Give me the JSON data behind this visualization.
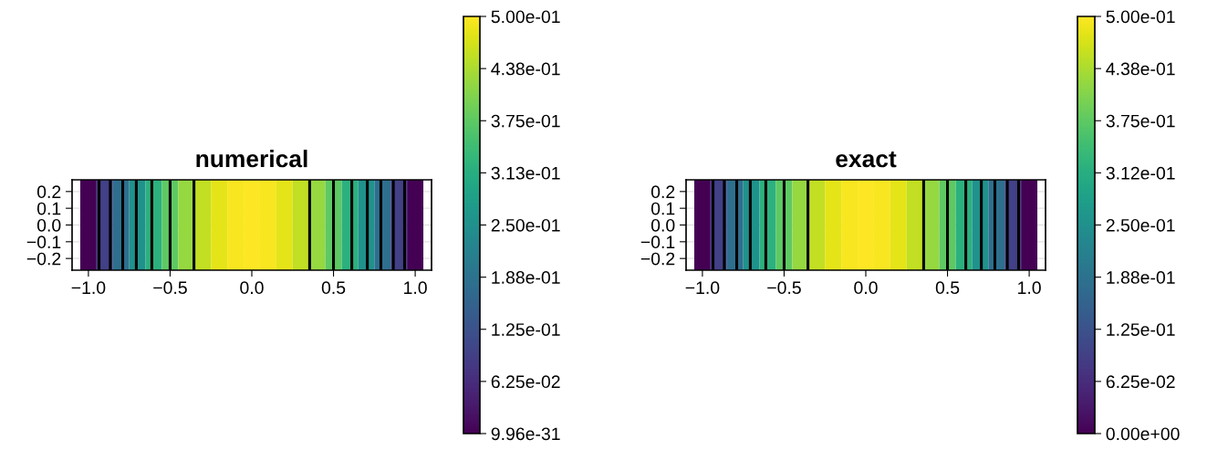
{
  "chart_data": [
    {
      "type": "heatmap",
      "title": "numerical",
      "x": [
        -1.0,
        -0.9,
        -0.8,
        -0.7,
        -0.6,
        -0.5,
        -0.4,
        -0.3,
        -0.2,
        -0.1,
        0.0,
        0.1,
        0.2,
        0.3,
        0.4,
        0.5,
        0.6,
        0.7,
        0.8,
        0.9,
        1.0
      ],
      "cells": [
        [
          9.96e-31,
          0.095,
          0.18,
          0.255,
          0.32,
          0.375,
          0.42,
          0.455,
          0.48,
          0.495,
          0.5,
          0.495,
          0.48,
          0.455,
          0.42,
          0.375,
          0.32,
          0.255,
          0.18,
          0.095,
          9.96e-31
        ]
      ],
      "xlim": [
        -1.1,
        1.1
      ],
      "ylim": [
        -0.27,
        0.27
      ],
      "xticks": [
        {
          "value": -1.0,
          "label": "−1.0"
        },
        {
          "value": -0.5,
          "label": "−0.5"
        },
        {
          "value": 0.0,
          "label": "0.0"
        },
        {
          "value": 0.5,
          "label": "0.5"
        },
        {
          "value": 1.0,
          "label": "1.0"
        }
      ],
      "yticks": [
        {
          "value": -0.2,
          "label": "−0.2"
        },
        {
          "value": -0.1,
          "label": "−0.1"
        },
        {
          "value": 0.0,
          "label": "0.0"
        },
        {
          "value": 0.1,
          "label": "0.1"
        },
        {
          "value": 0.2,
          "label": "0.2"
        }
      ],
      "clim": [
        9.96e-31,
        0.5
      ],
      "cticks": [
        {
          "value": 9.96e-31,
          "label": "9.96e-31"
        },
        {
          "value": 0.0625,
          "label": "6.25e-02"
        },
        {
          "value": 0.125,
          "label": "1.25e-01"
        },
        {
          "value": 0.1875,
          "label": "1.88e-01"
        },
        {
          "value": 0.25,
          "label": "2.50e-01"
        },
        {
          "value": 0.3125,
          "label": "3.13e-01"
        },
        {
          "value": 0.375,
          "label": "3.75e-01"
        },
        {
          "value": 0.4375,
          "label": "4.38e-01"
        },
        {
          "value": 0.5,
          "label": "5.00e-01"
        }
      ],
      "ref_lines": [
        {
          "axis": "x",
          "value": -0.935,
          "color": "#000000"
        },
        {
          "axis": "x",
          "value": -0.866,
          "color": "#000000"
        },
        {
          "axis": "x",
          "value": -0.79,
          "color": "#000000"
        },
        {
          "axis": "x",
          "value": -0.707,
          "color": "#000000"
        },
        {
          "axis": "x",
          "value": -0.612,
          "color": "#000000"
        },
        {
          "axis": "x",
          "value": -0.5,
          "color": "#000000"
        },
        {
          "axis": "x",
          "value": -0.354,
          "color": "#000000"
        },
        {
          "axis": "x",
          "value": 0.354,
          "color": "#000000"
        },
        {
          "axis": "x",
          "value": 0.5,
          "color": "#000000"
        },
        {
          "axis": "x",
          "value": 0.612,
          "color": "#000000"
        },
        {
          "axis": "x",
          "value": 0.707,
          "color": "#000000"
        },
        {
          "axis": "x",
          "value": 0.79,
          "color": "#000000"
        },
        {
          "axis": "x",
          "value": 0.866,
          "color": "#000000"
        },
        {
          "axis": "x",
          "value": 0.935,
          "color": "#000000"
        }
      ],
      "grid": true
    },
    {
      "type": "heatmap",
      "title": "exact",
      "x": [
        -1.0,
        -0.9,
        -0.8,
        -0.7,
        -0.6,
        -0.5,
        -0.4,
        -0.3,
        -0.2,
        -0.1,
        0.0,
        0.1,
        0.2,
        0.3,
        0.4,
        0.5,
        0.6,
        0.7,
        0.8,
        0.9,
        1.0
      ],
      "cells": [
        [
          0.0,
          0.095,
          0.18,
          0.255,
          0.32,
          0.375,
          0.42,
          0.455,
          0.48,
          0.495,
          0.5,
          0.495,
          0.48,
          0.455,
          0.42,
          0.375,
          0.32,
          0.255,
          0.18,
          0.095,
          0.0
        ]
      ],
      "xlim": [
        -1.1,
        1.1
      ],
      "ylim": [
        -0.27,
        0.27
      ],
      "xticks": [
        {
          "value": -1.0,
          "label": "−1.0"
        },
        {
          "value": -0.5,
          "label": "−0.5"
        },
        {
          "value": 0.0,
          "label": "0.0"
        },
        {
          "value": 0.5,
          "label": "0.5"
        },
        {
          "value": 1.0,
          "label": "1.0"
        }
      ],
      "yticks": [
        {
          "value": -0.2,
          "label": "−0.2"
        },
        {
          "value": -0.1,
          "label": "−0.1"
        },
        {
          "value": 0.0,
          "label": "0.0"
        },
        {
          "value": 0.1,
          "label": "0.1"
        },
        {
          "value": 0.2,
          "label": "0.2"
        }
      ],
      "clim": [
        0.0,
        0.5
      ],
      "cticks": [
        {
          "value": 0.0,
          "label": "0.00e+00"
        },
        {
          "value": 0.0625,
          "label": "6.25e-02"
        },
        {
          "value": 0.125,
          "label": "1.25e-01"
        },
        {
          "value": 0.1875,
          "label": "1.88e-01"
        },
        {
          "value": 0.25,
          "label": "2.50e-01"
        },
        {
          "value": 0.3125,
          "label": "3.12e-01"
        },
        {
          "value": 0.375,
          "label": "3.75e-01"
        },
        {
          "value": 0.4375,
          "label": "4.38e-01"
        },
        {
          "value": 0.5,
          "label": "5.00e-01"
        }
      ],
      "ref_lines": [
        {
          "axis": "x",
          "value": -0.935,
          "color": "#000000"
        },
        {
          "axis": "x",
          "value": -0.866,
          "color": "#000000"
        },
        {
          "axis": "x",
          "value": -0.79,
          "color": "#000000"
        },
        {
          "axis": "x",
          "value": -0.707,
          "color": "#000000"
        },
        {
          "axis": "x",
          "value": -0.612,
          "color": "#000000"
        },
        {
          "axis": "x",
          "value": -0.5,
          "color": "#000000"
        },
        {
          "axis": "x",
          "value": -0.354,
          "color": "#000000"
        },
        {
          "axis": "x",
          "value": 0.354,
          "color": "#000000"
        },
        {
          "axis": "x",
          "value": 0.5,
          "color": "#000000"
        },
        {
          "axis": "x",
          "value": 0.612,
          "color": "#000000"
        },
        {
          "axis": "x",
          "value": 0.707,
          "color": "#000000"
        },
        {
          "axis": "x",
          "value": 0.79,
          "color": "#000000"
        },
        {
          "axis": "x",
          "value": 0.866,
          "color": "#000000"
        },
        {
          "axis": "x",
          "value": 0.935,
          "color": "#000000"
        }
      ],
      "grid": true
    }
  ]
}
